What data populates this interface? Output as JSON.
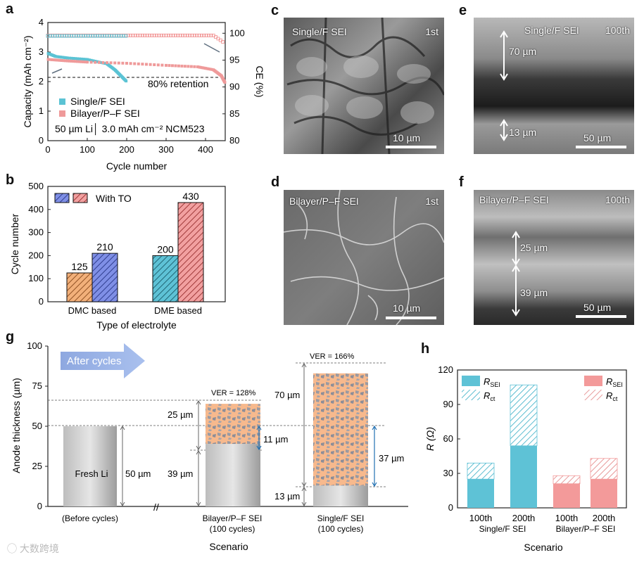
{
  "panels": {
    "a": "a",
    "b": "b",
    "c": "c",
    "d": "d",
    "e": "e",
    "f": "f",
    "g": "g",
    "h": "h"
  },
  "panel_a": {
    "ylabel_left": "Capacity (mAh cm⁻²)",
    "ylabel_right": "CE (%)",
    "xlabel": "Cycle number",
    "x_ticks": [
      "0",
      "100",
      "200",
      "300",
      "400"
    ],
    "y_left_ticks": [
      "0",
      "1",
      "2",
      "3",
      "4"
    ],
    "y_right_ticks": [
      "80",
      "85",
      "90",
      "95",
      "100"
    ],
    "retention_label": "80% retention",
    "legend": [
      "Single/F SEI",
      "Bilayer/P–F SEI"
    ],
    "condition": "50 µm Li│ 3.0 mAh cm⁻² NCM523",
    "colors": {
      "single": "#5bc3d4",
      "bilayer": "#ef9a9a"
    }
  },
  "panel_b": {
    "ylabel": "Cycle number",
    "xlabel": "Type of electrolyte",
    "legend": "With TO",
    "y_ticks": [
      "0",
      "100",
      "200",
      "300",
      "400",
      "500"
    ]
  },
  "panel_c": {
    "label": "Single/F SEI",
    "cycle": "1st",
    "scale": "10 µm"
  },
  "panel_d": {
    "label": "Bilayer/P–F SEI",
    "cycle": "1st",
    "scale": "10 µm"
  },
  "panel_e": {
    "label": "Single/F SEI",
    "cycle": "100th",
    "scale": "50 µm",
    "top_thickness": "70 µm",
    "bottom_thickness": "13 µm"
  },
  "panel_f": {
    "label": "Bilayer/P–F SEI",
    "cycle": "100th",
    "scale": "50 µm",
    "top_thickness": "25 µm",
    "bottom_thickness": "39 µm"
  },
  "panel_g": {
    "ylabel": "Anode thickness (µm)",
    "xlabel": "Scenario",
    "arrow_text": "After cycles",
    "y_ticks": [
      "0",
      "25",
      "50",
      "75",
      "100"
    ],
    "fresh_label": "Fresh Li",
    "fresh_thickness": "50 µm",
    "bilayer_ver": "VER = 128%",
    "single_ver": "VER = 166%",
    "bilayer_dims": [
      "25 µm",
      "39 µm",
      "11 µm"
    ],
    "single_dims": [
      "70 µm",
      "37 µm",
      "13 µm"
    ],
    "categories": [
      "(Before cycles)",
      "Bilayer/P–F SEI",
      "(100 cycles)",
      "Single/F SEI",
      "(100 cycles)"
    ],
    "break_mark": "//"
  },
  "panel_h": {
    "ylabel": "R (Ω)",
    "xlabel": "Scenario",
    "y_ticks": [
      "0",
      "30",
      "60",
      "90",
      "120"
    ],
    "tick_labels": [
      "100th",
      "200th",
      "100th",
      "200th"
    ],
    "groups": [
      "Single/F SEI",
      "Bilayer/P–F SEI"
    ],
    "legend_single": [
      "R_SEI",
      "R_ct"
    ],
    "legend_bilayer": [
      "R_SEI",
      "R_ct"
    ]
  },
  "watermark": "大数跨境",
  "chart_data": [
    {
      "type": "line",
      "title": "",
      "xlabel": "Cycle number",
      "ylabel": "Capacity (mAh cm⁻²)",
      "xlim": [
        0,
        450
      ],
      "ylim": [
        0,
        4
      ],
      "y2lim": [
        80,
        102
      ],
      "series": [
        {
          "name": "Single/F SEI",
          "x": [
            1,
            20,
            50,
            100,
            150,
            170,
            185,
            200
          ],
          "y": [
            2.95,
            2.85,
            2.8,
            2.75,
            2.6,
            2.4,
            2.2,
            2.0
          ]
        },
        {
          "name": "Bilayer/P–F SEI",
          "x": [
            1,
            50,
            100,
            200,
            300,
            380,
            420,
            440,
            450
          ],
          "y": [
            2.75,
            2.7,
            2.66,
            2.62,
            2.55,
            2.5,
            2.4,
            2.2,
            1.95
          ]
        }
      ],
      "reference_line": 2.1
    },
    {
      "type": "bar",
      "title": "",
      "categories": [
        "DMC based",
        "DME based"
      ],
      "series": [
        {
          "name": "",
          "values": [
            125,
            200
          ]
        },
        {
          "name": "With TO",
          "values": [
            210,
            430
          ]
        }
      ],
      "xlabel": "Type of electrolyte",
      "ylabel": "Cycle number",
      "ylim": [
        0,
        500
      ]
    },
    {
      "type": "bar",
      "title": "",
      "categories": [
        "(Before cycles)",
        "Bilayer/P–F SEI (100 cycles)",
        "Single/F SEI (100 cycles)"
      ],
      "series": [
        {
          "name": "Li",
          "values": [
            50,
            39,
            13
          ]
        },
        {
          "name": "SEI",
          "values": [
            0,
            25,
            70
          ]
        }
      ],
      "xlabel": "Scenario",
      "ylabel": "Anode thickness (µm)",
      "ylim": [
        0,
        100
      ]
    },
    {
      "type": "bar",
      "title": "",
      "categories": [
        "100th",
        "200th",
        "100th",
        "200th"
      ],
      "groups": [
        "Single/F SEI",
        "Single/F SEI",
        "Bilayer/P–F SEI",
        "Bilayer/P–F SEI"
      ],
      "series": [
        {
          "name": "R_SEI",
          "values": [
            25,
            54,
            21,
            25
          ]
        },
        {
          "name": "R_ct",
          "values": [
            14,
            53,
            7,
            18
          ]
        }
      ],
      "xlabel": "Scenario",
      "ylabel": "R (Ω)",
      "ylim": [
        0,
        120
      ]
    }
  ]
}
